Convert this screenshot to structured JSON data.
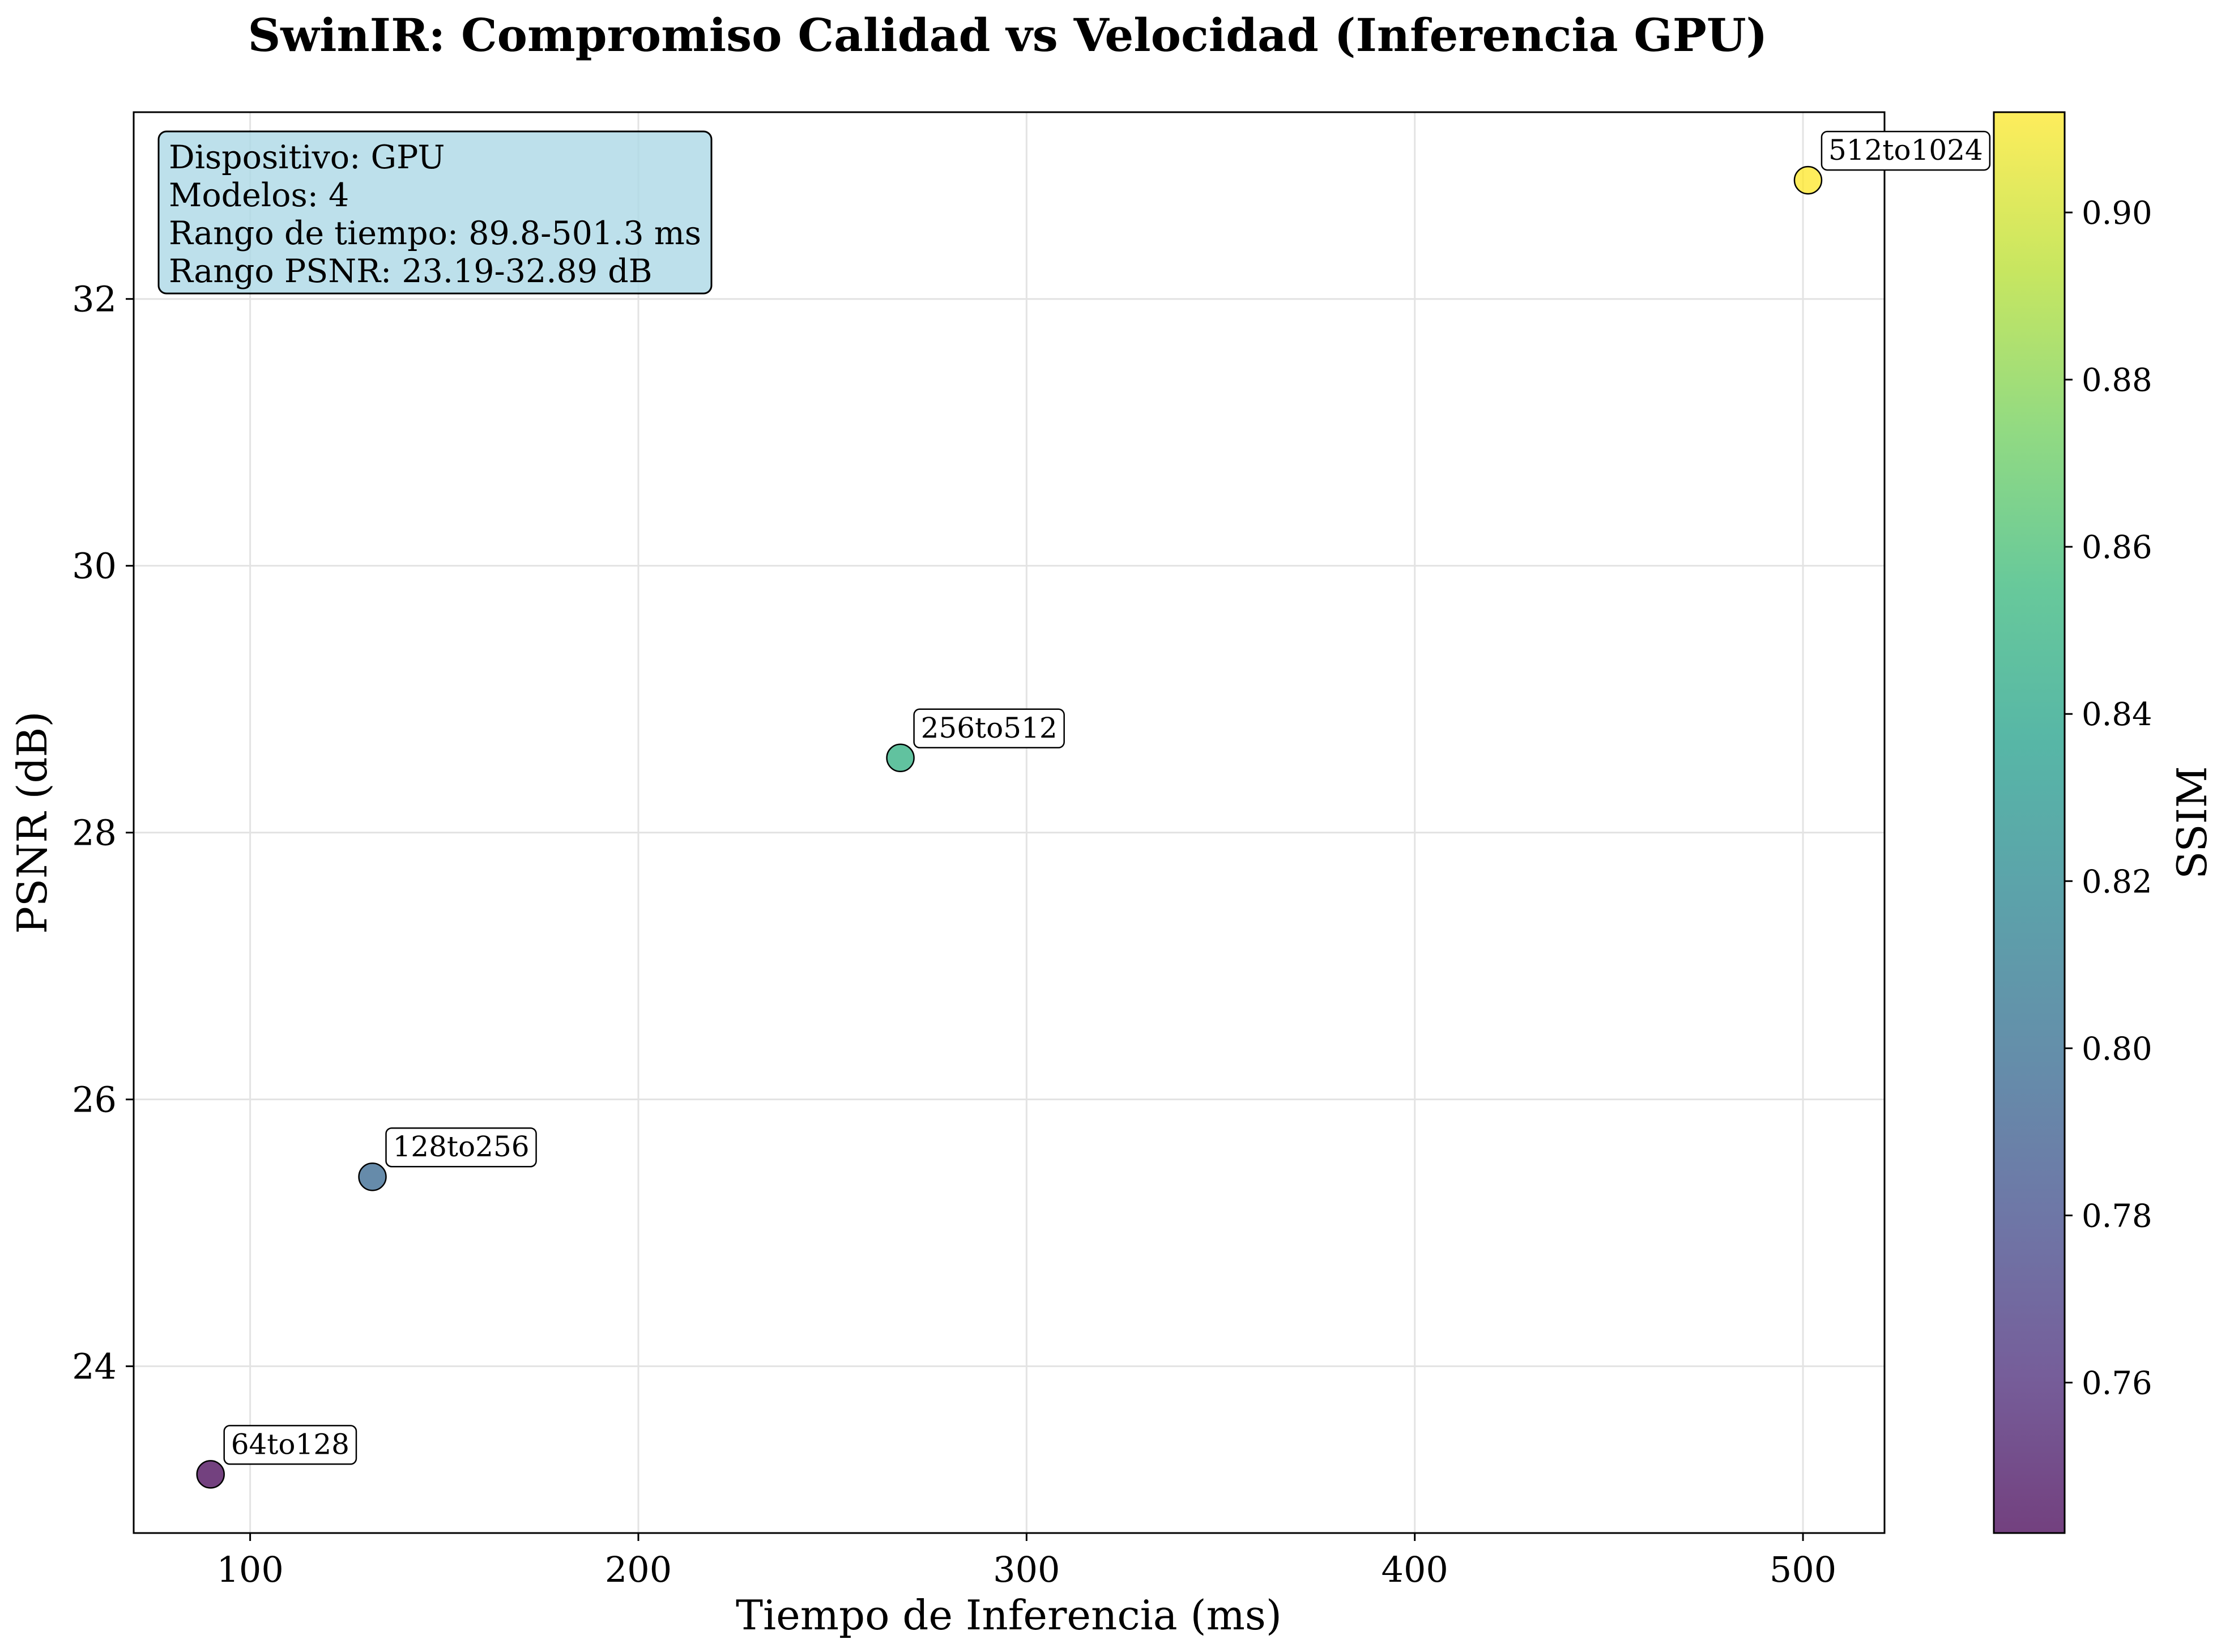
{
  "chart_data": {
    "type": "scatter",
    "title": "SwinIR: Compromiso Calidad vs Velocidad (Inferencia GPU)",
    "xlabel": "Tiempo de Inferencia (ms)",
    "ylabel": "PSNR (dB)",
    "xlim": [
      70,
      521
    ],
    "ylim": [
      22.75,
      33.4
    ],
    "xticks": [
      100,
      200,
      300,
      400,
      500
    ],
    "yticks": [
      24,
      26,
      28,
      30,
      32
    ],
    "grid": true,
    "colormap": "viridis",
    "colorbar": {
      "label": "SSIM",
      "range": [
        0.742,
        0.912
      ],
      "ticks": [
        "0.76",
        "0.78",
        "0.80",
        "0.82",
        "0.84",
        "0.86",
        "0.88",
        "0.90"
      ]
    },
    "points": [
      {
        "label": "64to128",
        "x": 89.8,
        "y": 23.19,
        "ssim": 0.742
      },
      {
        "label": "128to256",
        "x": 131.5,
        "y": 25.42,
        "ssim": 0.796
      },
      {
        "label": "256to512",
        "x": 267.5,
        "y": 28.56,
        "ssim": 0.848
      },
      {
        "label": "512to1024",
        "x": 501.3,
        "y": 32.89,
        "ssim": 0.912
      }
    ],
    "info_box": [
      "Dispositivo: GPU",
      "Modelos: 4",
      "Rango de tiempo: 89.8-501.3 ms",
      "Rango PSNR: 23.19-32.89 dB"
    ],
    "colors": {
      "info_box_fill": "#add8e6",
      "viridis": [
        "#440154",
        "#482878",
        "#3e4989",
        "#31688e",
        "#26828e",
        "#1f9e89",
        "#35b779",
        "#6ece58",
        "#b5de2b",
        "#fde725"
      ]
    }
  }
}
